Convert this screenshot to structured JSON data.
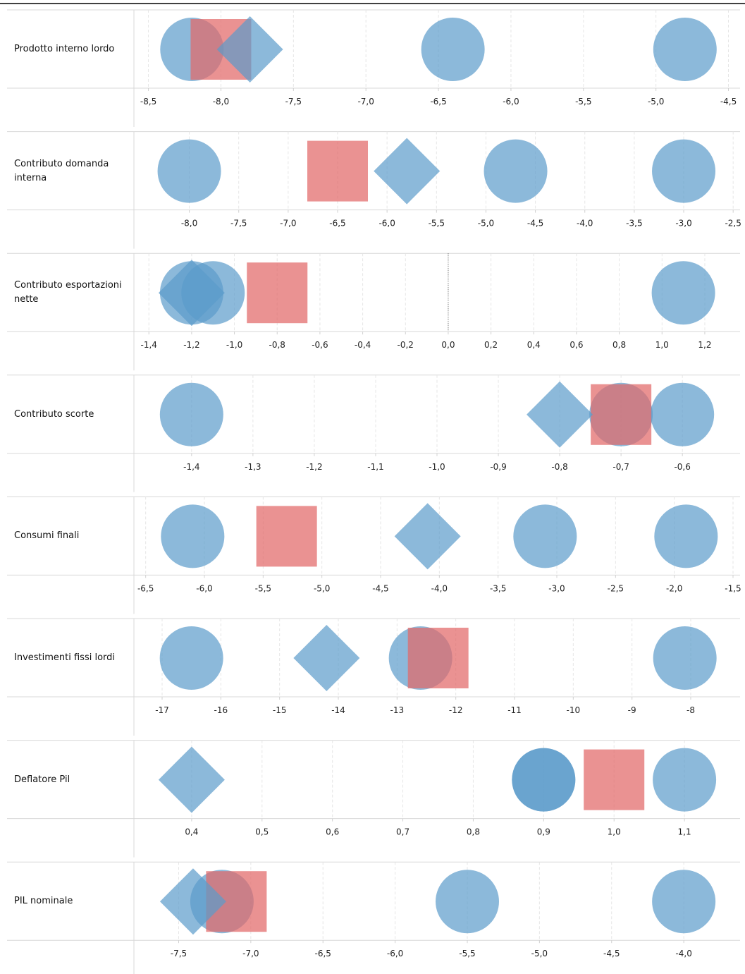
{
  "chart_data": [
    {
      "type": "scatter",
      "label": "Prodotto interno lordo",
      "grid": true,
      "xlim": [
        -8.6,
        -4.42
      ],
      "xticks": [
        {
          "value": -8.5,
          "label": "-8,5"
        },
        {
          "value": -8.0,
          "label": "-8,0"
        },
        {
          "value": -7.5,
          "label": "-7,5"
        },
        {
          "value": -7.0,
          "label": "-7,0"
        },
        {
          "value": -6.5,
          "label": "-6,5"
        },
        {
          "value": -6.0,
          "label": "-6,0"
        },
        {
          "value": -5.5,
          "label": "-5,5"
        },
        {
          "value": -5.0,
          "label": "-5,0"
        },
        {
          "value": -4.5,
          "label": "-4,5"
        }
      ],
      "series": [
        {
          "marker": "circle",
          "color": "#5b9bca",
          "values": [
            -8.2,
            -6.4,
            -4.8
          ]
        },
        {
          "marker": "square",
          "color": "#e26868",
          "values": [
            -8.0
          ]
        },
        {
          "marker": "diamond",
          "color": "#5b9bca",
          "values": [
            -7.8
          ]
        }
      ]
    },
    {
      "type": "scatter",
      "label": "Contributo domanda interna",
      "grid": true,
      "xlim": [
        -8.56,
        -2.43
      ],
      "xticks": [
        {
          "value": -8.0,
          "label": "-8,0"
        },
        {
          "value": -7.5,
          "label": "-7,5"
        },
        {
          "value": -7.0,
          "label": "-7,0"
        },
        {
          "value": -6.5,
          "label": "-6,5"
        },
        {
          "value": -6.0,
          "label": "-6,0"
        },
        {
          "value": -5.5,
          "label": "-5,5"
        },
        {
          "value": -5.0,
          "label": "-5,0"
        },
        {
          "value": -4.5,
          "label": "-4,5"
        },
        {
          "value": -4.0,
          "label": "-4,0"
        },
        {
          "value": -3.5,
          "label": "-3,5"
        },
        {
          "value": -3.0,
          "label": "-3,0"
        },
        {
          "value": -2.5,
          "label": "-2,5"
        }
      ],
      "series": [
        {
          "marker": "circle",
          "color": "#5b9bca",
          "values": [
            -8.0,
            -4.7,
            -3.0
          ]
        },
        {
          "marker": "square",
          "color": "#e26868",
          "values": [
            -6.5
          ]
        },
        {
          "marker": "diamond",
          "color": "#5b9bca",
          "values": [
            -5.8
          ]
        }
      ]
    },
    {
      "type": "scatter",
      "label": "Contributo esportazioni nette",
      "grid": true,
      "zero_line": true,
      "xlim": [
        -1.47,
        1.365
      ],
      "xticks": [
        {
          "value": -1.4,
          "label": "-1,4"
        },
        {
          "value": -1.2,
          "label": "-1,2"
        },
        {
          "value": -1.0,
          "label": "-1,0"
        },
        {
          "value": -0.8,
          "label": "-0,8"
        },
        {
          "value": -0.6,
          "label": "-0,6"
        },
        {
          "value": -0.4,
          "label": "-0,4"
        },
        {
          "value": -0.2,
          "label": "-0,2"
        },
        {
          "value": 0.0,
          "label": "0,0"
        },
        {
          "value": 0.2,
          "label": "0,2"
        },
        {
          "value": 0.4,
          "label": "0,4"
        },
        {
          "value": 0.6,
          "label": "0,6"
        },
        {
          "value": 0.8,
          "label": "0,8"
        },
        {
          "value": 1.0,
          "label": "1,0"
        },
        {
          "value": 1.2,
          "label": "1,2"
        }
      ],
      "series": [
        {
          "marker": "circle",
          "color": "#5b9bca",
          "values": [
            -1.2,
            -1.1,
            1.1
          ]
        },
        {
          "marker": "square",
          "color": "#e26868",
          "values": [
            -0.8
          ]
        },
        {
          "marker": "diamond",
          "color": "#5b9bca",
          "values": [
            -1.2
          ]
        }
      ]
    },
    {
      "type": "scatter",
      "label": "Contributo scorte",
      "grid": true,
      "xlim": [
        -1.494,
        -0.506
      ],
      "xticks": [
        {
          "value": -1.4,
          "label": "-1,4"
        },
        {
          "value": -1.3,
          "label": "-1,3"
        },
        {
          "value": -1.2,
          "label": "-1,2"
        },
        {
          "value": -1.1,
          "label": "-1,1"
        },
        {
          "value": -1.0,
          "label": "-1,0"
        },
        {
          "value": -0.9,
          "label": "-0,9"
        },
        {
          "value": -0.8,
          "label": "-0,8"
        },
        {
          "value": -0.7,
          "label": "-0,7"
        },
        {
          "value": -0.6,
          "label": "-0,6"
        }
      ],
      "series": [
        {
          "marker": "circle",
          "color": "#5b9bca",
          "values": [
            -1.4,
            -0.7,
            -0.6
          ]
        },
        {
          "marker": "square",
          "color": "#e26868",
          "values": [
            -0.7
          ]
        },
        {
          "marker": "diamond",
          "color": "#5b9bca",
          "values": [
            -0.8
          ]
        }
      ]
    },
    {
      "type": "scatter",
      "label": "Consumi finali",
      "grid": true,
      "xlim": [
        -6.6,
        -1.44
      ],
      "xticks": [
        {
          "value": -6.5,
          "label": "-6,5"
        },
        {
          "value": -6.0,
          "label": "-6,0"
        },
        {
          "value": -5.5,
          "label": "-5,5"
        },
        {
          "value": -5.0,
          "label": "-5,0"
        },
        {
          "value": -4.5,
          "label": "-4,5"
        },
        {
          "value": -4.0,
          "label": "-4,0"
        },
        {
          "value": -3.5,
          "label": "-3,5"
        },
        {
          "value": -3.0,
          "label": "-3,0"
        },
        {
          "value": -2.5,
          "label": "-2,5"
        },
        {
          "value": -2.0,
          "label": "-2,0"
        },
        {
          "value": -1.5,
          "label": "-1,5"
        }
      ],
      "series": [
        {
          "marker": "circle",
          "color": "#5b9bca",
          "values": [
            -6.1,
            -3.1,
            -1.9
          ]
        },
        {
          "marker": "square",
          "color": "#e26868",
          "values": [
            -5.3
          ]
        },
        {
          "marker": "diamond",
          "color": "#5b9bca",
          "values": [
            -4.1
          ]
        }
      ]
    },
    {
      "type": "scatter",
      "label": "Investimenti fissi lordi",
      "grid": true,
      "xlim": [
        -17.48,
        -7.16
      ],
      "xticks": [
        -17,
        -16,
        -15,
        -14,
        -13,
        -12,
        -11,
        -10,
        -9,
        -8
      ],
      "series": [
        {
          "marker": "circle",
          "color": "#5b9bca",
          "values": [
            -16.5,
            -12.6,
            -8.1
          ]
        },
        {
          "marker": "square",
          "color": "#e26868",
          "values": [
            -12.3
          ]
        },
        {
          "marker": "diamond",
          "color": "#5b9bca",
          "values": [
            -14.2
          ]
        }
      ]
    },
    {
      "type": "scatter",
      "label": "Deflatore Pil",
      "grid": true,
      "xlim": [
        0.318,
        1.179
      ],
      "xticks": [
        {
          "value": 0.4,
          "label": "0,4"
        },
        {
          "value": 0.5,
          "label": "0,5"
        },
        {
          "value": 0.6,
          "label": "0,6"
        },
        {
          "value": 0.7,
          "label": "0,7"
        },
        {
          "value": 0.8,
          "label": "0,8"
        },
        {
          "value": 0.9,
          "label": "0,9"
        },
        {
          "value": 1.0,
          "label": "1,0"
        },
        {
          "value": 1.1,
          "label": "1,1"
        }
      ],
      "series": [
        {
          "marker": "circle",
          "color": "#5b9bca",
          "values": [
            0.9,
            0.9,
            1.1
          ]
        },
        {
          "marker": "square",
          "color": "#e26868",
          "values": [
            1.0
          ]
        },
        {
          "marker": "diamond",
          "color": "#5b9bca",
          "values": [
            0.4
          ]
        }
      ]
    },
    {
      "type": "scatter",
      "label": "PIL nominale",
      "grid": true,
      "xlim": [
        -7.81,
        -3.61
      ],
      "xticks": [
        {
          "value": -7.5,
          "label": "-7,5"
        },
        {
          "value": -7.0,
          "label": "-7,0"
        },
        {
          "value": -6.5,
          "label": "-6,5"
        },
        {
          "value": -6.0,
          "label": "-6,0"
        },
        {
          "value": -5.5,
          "label": "-5,5"
        },
        {
          "value": -5.0,
          "label": "-5,0"
        },
        {
          "value": -4.5,
          "label": "-4,5"
        },
        {
          "value": -4.0,
          "label": "-4,0"
        }
      ],
      "series": [
        {
          "marker": "circle",
          "color": "#5b9bca",
          "values": [
            -7.2,
            -5.5,
            -4.0
          ]
        },
        {
          "marker": "square",
          "color": "#e26868",
          "values": [
            -7.1
          ]
        },
        {
          "marker": "diamond",
          "color": "#5b9bca",
          "values": [
            -7.4
          ]
        }
      ]
    }
  ]
}
